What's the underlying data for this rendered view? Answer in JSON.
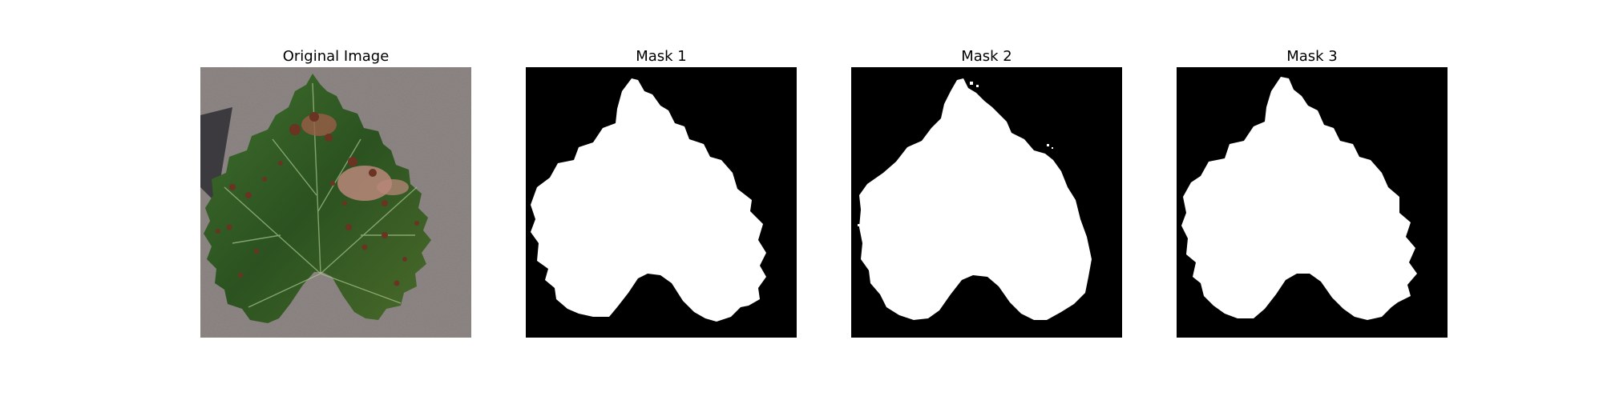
{
  "panels": [
    {
      "title": "Original Image",
      "kind": "photo"
    },
    {
      "title": "Mask 1",
      "kind": "mask"
    },
    {
      "title": "Mask 2",
      "kind": "mask"
    },
    {
      "title": "Mask 3",
      "kind": "mask"
    }
  ],
  "colors": {
    "background": "#ffffff",
    "mask_foreground": "#ffffff",
    "mask_background": "#000000",
    "leaf_green": "#2f5a24",
    "leaf_dark": "#1c3a16",
    "lesion_brown": "#7a3e2a",
    "lesion_pink": "#b9877a",
    "surface_gray": "#8f8886",
    "shadow": "#2e2e33"
  }
}
